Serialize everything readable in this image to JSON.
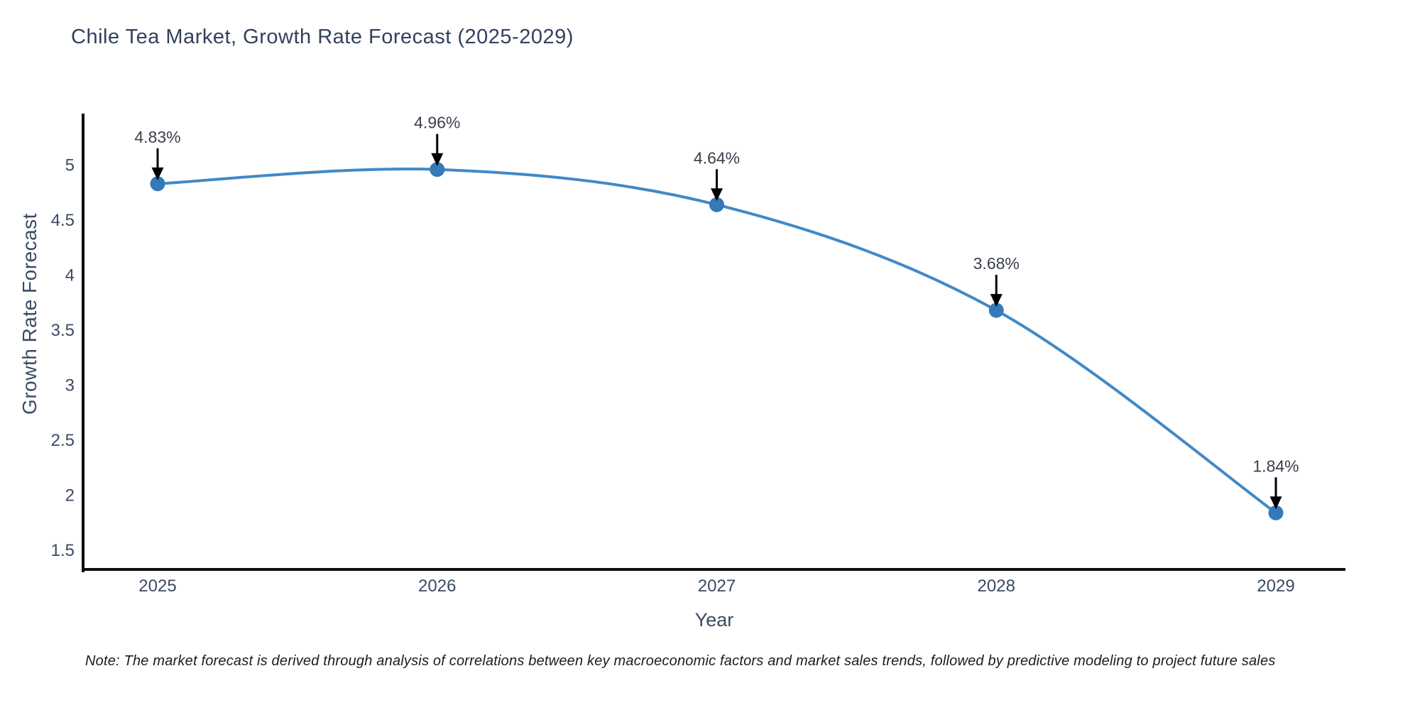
{
  "title": "Chile Tea Market, Growth Rate Forecast (2025-2029)",
  "note": "Note: The market forecast is derived through analysis of correlations between key macroeconomic factors and market sales trends, followed by predictive modeling to project future sales",
  "chart_data": {
    "type": "line",
    "title": "Chile Tea Market, Growth Rate Forecast (2025-2029)",
    "xlabel": "Year",
    "ylabel": "Growth Rate Forecast",
    "x": [
      "2025",
      "2026",
      "2027",
      "2028",
      "2029"
    ],
    "series": [
      {
        "name": "Growth Rate Forecast",
        "values": [
          4.83,
          4.96,
          4.64,
          3.68,
          1.84
        ]
      }
    ],
    "point_labels": [
      "4.83%",
      "4.96%",
      "4.64%",
      "3.68%",
      "1.84%"
    ],
    "yticks": [
      1.5,
      2,
      2.5,
      3,
      3.5,
      4,
      4.5,
      5
    ],
    "ylim": [
      1.33,
      5.47
    ],
    "grid": false,
    "legend": false,
    "curve": "smooth-spline",
    "annotation_style": "value label with downward black arrow onto each marker"
  },
  "colors": {
    "line": "#4189c7",
    "marker": "#3579b8",
    "arrow": "#000000",
    "spine": "#0d0d0d",
    "tick_label": "#3b4a63",
    "annotation_text": "#393f4b",
    "title_text": "#32415f",
    "background": "#ffffff"
  }
}
